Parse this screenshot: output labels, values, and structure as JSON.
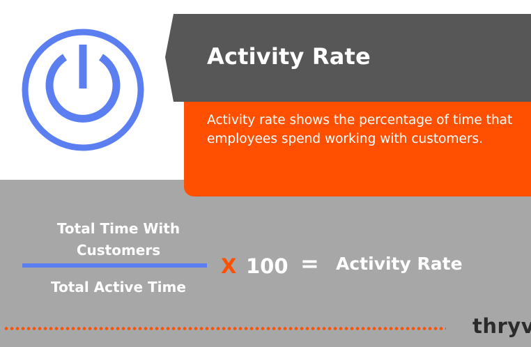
{
  "header": {
    "title": "Activity Rate"
  },
  "description": {
    "text": "Activity rate shows the percentage of time that employees spend working with customers."
  },
  "formula": {
    "numerator": "Total Time With Customers",
    "denominator": "Total Active Time",
    "multiply_symbol": "X",
    "multiplier": "100",
    "equals_symbol": "=",
    "result": "Activity Rate"
  },
  "brand": {
    "logo_text": "thryv"
  },
  "icons": {
    "hero": "power-icon"
  },
  "colors": {
    "accent_orange": "#fe5000",
    "icon_blue": "#5b7ff0",
    "banner_gray": "#575757",
    "panel_gray": "#a7a7a7"
  }
}
